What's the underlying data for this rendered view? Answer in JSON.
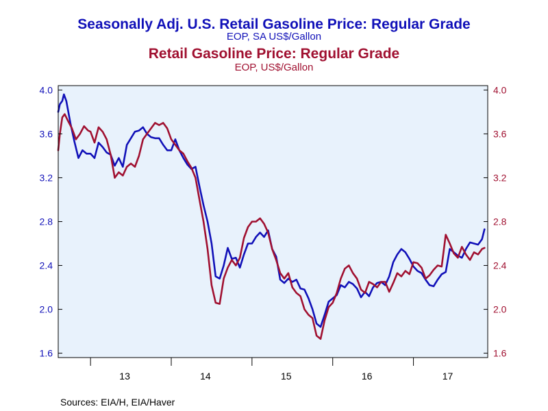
{
  "chart_data": {
    "type": "line",
    "title_1": "Seasonally Adj. U.S. Retail Gasoline Price: Regular Grade",
    "subtitle_1": "EOP, SA US$/Gallon",
    "title_2": "Retail Gasoline Price: Regular Grade",
    "subtitle_2": "EOP, US$/Gallon",
    "source": "Sources:  EIA/H, EIA/Haver",
    "x_tick_labels": [
      "13",
      "14",
      "15",
      "16",
      "17"
    ],
    "x_range": [
      2012.6,
      2017.92
    ],
    "y_left": {
      "ticks": [
        "1.6",
        "2.0",
        "2.4",
        "2.8",
        "3.2",
        "3.6",
        "4.0"
      ],
      "range": [
        1.56,
        4.04
      ]
    },
    "y_right": {
      "ticks": [
        "1.6",
        "2.0",
        "2.4",
        "2.8",
        "3.2",
        "3.6",
        "4.0"
      ],
      "range": [
        1.56,
        4.04
      ]
    },
    "grid": false,
    "legend": "none",
    "colors": {
      "sa": "#1010b8",
      "nsa": "#a01030",
      "plot_bg": "#e8f2fc",
      "axis": "#000000"
    },
    "series": [
      {
        "color": "#1010b8",
        "x": [
          2012.6,
          2012.62,
          2012.65,
          2012.67,
          2012.7,
          2012.75,
          2012.8,
          2012.85,
          2012.9,
          2012.95,
          2013.0,
          2013.05,
          2013.1,
          2013.15,
          2013.2,
          2013.25,
          2013.3,
          2013.35,
          2013.4,
          2013.45,
          2013.5,
          2013.55,
          2013.6,
          2013.65,
          2013.7,
          2013.75,
          2013.8,
          2013.85,
          2013.9,
          2013.95,
          2014.0,
          2014.05,
          2014.1,
          2014.15,
          2014.2,
          2014.25,
          2014.3,
          2014.35,
          2014.4,
          2014.45,
          2014.5,
          2014.55,
          2014.6,
          2014.65,
          2014.7,
          2014.75,
          2014.8,
          2014.85,
          2014.9,
          2014.95,
          2015.0,
          2015.05,
          2015.1,
          2015.15,
          2015.2,
          2015.25,
          2015.3,
          2015.35,
          2015.4,
          2015.45,
          2015.5,
          2015.55,
          2015.6,
          2015.65,
          2015.7,
          2015.75,
          2015.8,
          2015.85,
          2015.9,
          2015.95,
          2016.0,
          2016.05,
          2016.1,
          2016.15,
          2016.2,
          2016.25,
          2016.3,
          2016.35,
          2016.4,
          2016.45,
          2016.5,
          2016.55,
          2016.6,
          2016.65,
          2016.7,
          2016.75,
          2016.8,
          2016.85,
          2016.9,
          2016.95,
          2017.0,
          2017.05,
          2017.1,
          2017.15,
          2017.2,
          2017.25,
          2017.3,
          2017.35,
          2017.4,
          2017.45,
          2017.5,
          2017.55,
          2017.6,
          2017.65,
          2017.7,
          2017.75,
          2017.8,
          2017.85,
          2017.88
        ],
        "values": [
          3.8,
          3.87,
          3.9,
          3.96,
          3.9,
          3.7,
          3.53,
          3.38,
          3.45,
          3.42,
          3.42,
          3.38,
          3.52,
          3.48,
          3.43,
          3.41,
          3.31,
          3.38,
          3.3,
          3.5,
          3.56,
          3.62,
          3.63,
          3.66,
          3.6,
          3.57,
          3.56,
          3.56,
          3.5,
          3.45,
          3.45,
          3.55,
          3.45,
          3.38,
          3.32,
          3.28,
          3.3,
          3.12,
          2.95,
          2.8,
          2.6,
          2.3,
          2.28,
          2.4,
          2.56,
          2.46,
          2.47,
          2.38,
          2.5,
          2.6,
          2.6,
          2.66,
          2.7,
          2.66,
          2.72,
          2.55,
          2.48,
          2.27,
          2.24,
          2.28,
          2.25,
          2.27,
          2.19,
          2.18,
          2.1,
          2.0,
          1.87,
          1.84,
          1.95,
          2.07,
          2.1,
          2.13,
          2.22,
          2.2,
          2.25,
          2.23,
          2.19,
          2.11,
          2.16,
          2.12,
          2.2,
          2.24,
          2.25,
          2.22,
          2.3,
          2.43,
          2.5,
          2.55,
          2.52,
          2.46,
          2.39,
          2.35,
          2.33,
          2.27,
          2.22,
          2.21,
          2.27,
          2.32,
          2.34,
          2.55,
          2.52,
          2.49,
          2.47,
          2.55,
          2.61,
          2.6,
          2.59,
          2.64,
          2.73
        ]
      },
      {
        "color": "#a01030",
        "x": [
          2012.6,
          2012.62,
          2012.65,
          2012.68,
          2012.72,
          2012.77,
          2012.82,
          2012.87,
          2012.92,
          2012.97,
          2013.0,
          2013.05,
          2013.1,
          2013.15,
          2013.2,
          2013.25,
          2013.3,
          2013.35,
          2013.4,
          2013.45,
          2013.5,
          2013.55,
          2013.6,
          2013.65,
          2013.7,
          2013.75,
          2013.8,
          2013.85,
          2013.9,
          2013.95,
          2014.0,
          2014.05,
          2014.1,
          2014.15,
          2014.2,
          2014.25,
          2014.3,
          2014.35,
          2014.4,
          2014.45,
          2014.5,
          2014.55,
          2014.6,
          2014.65,
          2014.7,
          2014.75,
          2014.8,
          2014.85,
          2014.9,
          2014.95,
          2015.0,
          2015.05,
          2015.1,
          2015.15,
          2015.2,
          2015.25,
          2015.3,
          2015.35,
          2015.4,
          2015.45,
          2015.5,
          2015.55,
          2015.6,
          2015.65,
          2015.7,
          2015.75,
          2015.8,
          2015.85,
          2015.9,
          2015.95,
          2016.0,
          2016.05,
          2016.1,
          2016.15,
          2016.2,
          2016.25,
          2016.3,
          2016.35,
          2016.4,
          2016.45,
          2016.5,
          2016.55,
          2016.6,
          2016.65,
          2016.7,
          2016.75,
          2016.8,
          2016.85,
          2016.9,
          2016.95,
          2017.0,
          2017.05,
          2017.1,
          2017.15,
          2017.2,
          2017.25,
          2017.3,
          2017.35,
          2017.4,
          2017.45,
          2017.5,
          2017.55,
          2017.6,
          2017.65,
          2017.7,
          2017.75,
          2017.8,
          2017.85,
          2017.88
        ],
        "values": [
          3.45,
          3.6,
          3.75,
          3.78,
          3.72,
          3.65,
          3.55,
          3.6,
          3.67,
          3.63,
          3.62,
          3.52,
          3.66,
          3.62,
          3.55,
          3.41,
          3.2,
          3.25,
          3.22,
          3.3,
          3.33,
          3.3,
          3.4,
          3.55,
          3.6,
          3.65,
          3.7,
          3.68,
          3.7,
          3.65,
          3.55,
          3.5,
          3.45,
          3.42,
          3.35,
          3.29,
          3.2,
          3.0,
          2.8,
          2.55,
          2.22,
          2.06,
          2.05,
          2.28,
          2.38,
          2.45,
          2.4,
          2.47,
          2.65,
          2.75,
          2.8,
          2.8,
          2.83,
          2.78,
          2.7,
          2.55,
          2.45,
          2.33,
          2.28,
          2.33,
          2.2,
          2.15,
          2.12,
          2.0,
          1.95,
          1.92,
          1.76,
          1.73,
          1.9,
          2.02,
          2.06,
          2.15,
          2.28,
          2.37,
          2.4,
          2.33,
          2.28,
          2.18,
          2.15,
          2.25,
          2.23,
          2.2,
          2.25,
          2.25,
          2.16,
          2.24,
          2.33,
          2.3,
          2.35,
          2.32,
          2.43,
          2.42,
          2.38,
          2.28,
          2.31,
          2.36,
          2.4,
          2.39,
          2.68,
          2.6,
          2.51,
          2.47,
          2.57,
          2.5,
          2.45,
          2.52,
          2.5,
          2.55,
          2.56
        ]
      }
    ]
  }
}
